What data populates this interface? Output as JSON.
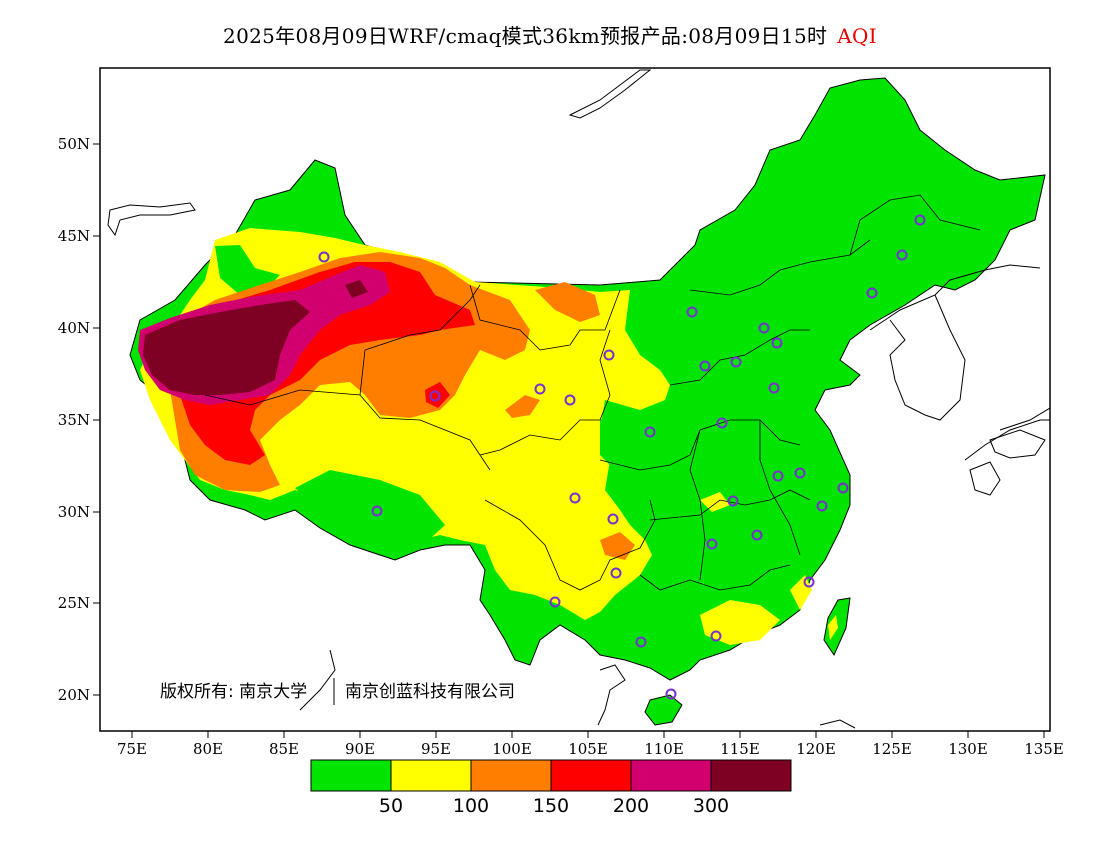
{
  "title": {
    "main": "2025年08月09日WRF/cmaq模式36km预报产品:08月09日15时",
    "variable": "AQI",
    "variable_color": "#e60000"
  },
  "map": {
    "lat_ticks": [
      "50N",
      "45N",
      "40N",
      "35N",
      "30N",
      "25N",
      "20N"
    ],
    "lon_ticks": [
      "75E",
      "80E",
      "85E",
      "90E",
      "95E",
      "100E",
      "105E",
      "110E",
      "115E",
      "120E",
      "125E",
      "130E",
      "135E"
    ],
    "copyright_owner": "版权所有: 南京大学",
    "copyright_partner": "南京创蓝科技有限公司",
    "station_marker_color": "#7a2fd0"
  },
  "legend": {
    "colors": [
      "#00e400",
      "#ffff00",
      "#ff7e00",
      "#ff0000",
      "#d2006e",
      "#7e0023"
    ],
    "labels": [
      "50",
      "100",
      "150",
      "200",
      "300"
    ]
  }
}
